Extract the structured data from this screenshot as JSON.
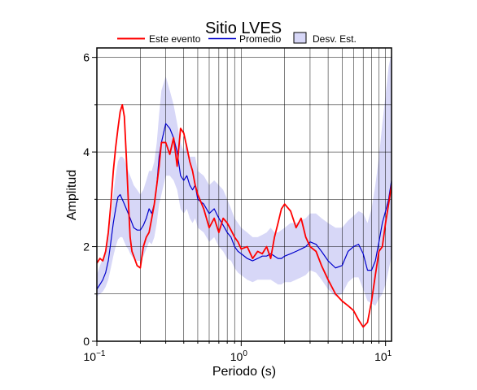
{
  "chart_data": {
    "type": "line",
    "title": "Sitio LVES",
    "xlabel": "Periodo (s)",
    "ylabel": "Amplitud",
    "x_scale": "log",
    "xlim": [
      0.1,
      11
    ],
    "ylim": [
      0,
      6.2
    ],
    "x_tick_labels": [
      {
        "value": 0.1,
        "base": "10",
        "exp": "−1"
      },
      {
        "value": 1,
        "base": "10",
        "exp": "0"
      },
      {
        "value": 10,
        "base": "10",
        "exp": "1"
      }
    ],
    "y_ticks": [
      0,
      2,
      4,
      6
    ],
    "grid": true,
    "legend_position": "top-center",
    "legend": {
      "event": "Este evento",
      "mean": "Promedio",
      "std": "Desv. Est."
    },
    "colors": {
      "event": "#ff0000",
      "mean": "#0000cc",
      "std_fill": "#d7d7f7",
      "grid": "#000000"
    },
    "series": [
      {
        "name": "Este evento",
        "x": [
          0.1,
          0.105,
          0.11,
          0.115,
          0.12,
          0.125,
          0.13,
          0.135,
          0.14,
          0.145,
          0.15,
          0.155,
          0.16,
          0.165,
          0.17,
          0.175,
          0.18,
          0.19,
          0.2,
          0.21,
          0.22,
          0.23,
          0.24,
          0.25,
          0.26,
          0.27,
          0.28,
          0.3,
          0.32,
          0.34,
          0.36,
          0.38,
          0.4,
          0.42,
          0.44,
          0.46,
          0.48,
          0.5,
          0.55,
          0.6,
          0.65,
          0.7,
          0.75,
          0.8,
          0.85,
          0.9,
          0.95,
          1.0,
          1.1,
          1.2,
          1.3,
          1.4,
          1.5,
          1.6,
          1.7,
          1.8,
          1.9,
          2.0,
          2.2,
          2.4,
          2.6,
          2.8,
          3.0,
          3.3,
          3.6,
          4.0,
          4.5,
          5.0,
          5.5,
          6.0,
          6.5,
          7.0,
          7.5,
          8.0,
          8.5,
          9.0,
          9.5,
          10.0,
          10.5,
          11.0
        ],
        "values": [
          1.65,
          1.75,
          1.7,
          1.9,
          2.3,
          2.9,
          3.6,
          4.1,
          4.5,
          4.85,
          5.0,
          4.75,
          3.9,
          3.0,
          2.2,
          1.9,
          1.8,
          1.6,
          1.55,
          2.0,
          2.2,
          2.3,
          2.6,
          2.9,
          3.3,
          3.7,
          4.2,
          4.2,
          3.95,
          4.3,
          3.7,
          4.5,
          4.4,
          4.1,
          3.8,
          3.6,
          3.3,
          3.1,
          2.8,
          2.4,
          2.6,
          2.3,
          2.6,
          2.5,
          2.35,
          2.2,
          2.1,
          1.95,
          2.0,
          1.75,
          1.9,
          1.85,
          2.0,
          1.75,
          2.2,
          2.5,
          2.8,
          2.9,
          2.75,
          2.4,
          2.6,
          2.2,
          2.0,
          1.9,
          1.6,
          1.3,
          1.0,
          0.85,
          0.75,
          0.65,
          0.45,
          0.3,
          0.4,
          0.85,
          1.4,
          1.9,
          2.0,
          2.5,
          2.9,
          3.3
        ]
      },
      {
        "name": "Promedio",
        "x": [
          0.1,
          0.105,
          0.11,
          0.115,
          0.12,
          0.125,
          0.13,
          0.135,
          0.14,
          0.145,
          0.15,
          0.155,
          0.16,
          0.165,
          0.17,
          0.175,
          0.18,
          0.19,
          0.2,
          0.21,
          0.22,
          0.23,
          0.24,
          0.25,
          0.26,
          0.27,
          0.28,
          0.3,
          0.32,
          0.34,
          0.36,
          0.38,
          0.4,
          0.42,
          0.44,
          0.46,
          0.48,
          0.5,
          0.55,
          0.6,
          0.65,
          0.7,
          0.75,
          0.8,
          0.85,
          0.9,
          0.95,
          1.0,
          1.1,
          1.2,
          1.3,
          1.4,
          1.5,
          1.6,
          1.7,
          1.8,
          1.9,
          2.0,
          2.2,
          2.4,
          2.6,
          2.8,
          3.0,
          3.3,
          3.6,
          4.0,
          4.5,
          5.0,
          5.5,
          6.0,
          6.5,
          7.0,
          7.5,
          8.0,
          8.5,
          9.0,
          9.5,
          10.0,
          10.5,
          11.0
        ],
        "values": [
          1.1,
          1.2,
          1.3,
          1.45,
          1.7,
          2.1,
          2.5,
          2.8,
          3.05,
          3.1,
          3.0,
          2.9,
          2.8,
          2.7,
          2.6,
          2.5,
          2.4,
          2.35,
          2.35,
          2.45,
          2.6,
          2.8,
          2.7,
          2.9,
          3.3,
          3.9,
          4.2,
          4.6,
          4.5,
          4.3,
          4.0,
          3.5,
          3.4,
          3.5,
          3.3,
          3.2,
          3.3,
          3.0,
          2.9,
          2.7,
          2.8,
          2.6,
          2.45,
          2.3,
          2.2,
          2.0,
          1.9,
          1.85,
          1.75,
          1.7,
          1.75,
          1.8,
          1.8,
          1.85,
          1.8,
          1.75,
          1.75,
          1.8,
          1.85,
          1.9,
          1.95,
          2.0,
          2.1,
          2.05,
          1.9,
          1.7,
          1.55,
          1.6,
          1.9,
          2.0,
          2.05,
          1.85,
          1.5,
          1.5,
          1.7,
          2.1,
          2.5,
          2.75,
          3.0,
          3.4
        ]
      },
      {
        "name": "Desv. Est.",
        "x": [
          0.1,
          0.105,
          0.11,
          0.115,
          0.12,
          0.125,
          0.13,
          0.135,
          0.14,
          0.145,
          0.15,
          0.155,
          0.16,
          0.165,
          0.17,
          0.175,
          0.18,
          0.19,
          0.2,
          0.21,
          0.22,
          0.23,
          0.24,
          0.25,
          0.26,
          0.27,
          0.28,
          0.3,
          0.32,
          0.34,
          0.36,
          0.38,
          0.4,
          0.42,
          0.44,
          0.46,
          0.48,
          0.5,
          0.55,
          0.6,
          0.65,
          0.7,
          0.75,
          0.8,
          0.85,
          0.9,
          0.95,
          1.0,
          1.1,
          1.2,
          1.3,
          1.4,
          1.5,
          1.6,
          1.7,
          1.8,
          1.9,
          2.0,
          2.2,
          2.4,
          2.6,
          2.8,
          3.0,
          3.3,
          3.6,
          4.0,
          4.5,
          5.0,
          5.5,
          6.0,
          6.5,
          7.0,
          7.5,
          8.0,
          8.5,
          9.0,
          9.5,
          10.0,
          10.5,
          11.0
        ],
        "upper": [
          1.4,
          1.6,
          1.75,
          1.9,
          2.2,
          2.6,
          3.1,
          3.5,
          3.8,
          3.9,
          3.9,
          3.85,
          3.7,
          3.6,
          3.5,
          3.4,
          3.3,
          3.2,
          3.1,
          3.2,
          3.4,
          3.6,
          3.6,
          3.8,
          4.2,
          4.8,
          5.3,
          5.6,
          5.3,
          5.0,
          4.6,
          4.2,
          4.0,
          4.2,
          3.9,
          3.9,
          3.9,
          3.6,
          3.5,
          3.3,
          3.4,
          3.3,
          3.2,
          3.0,
          2.8,
          2.6,
          2.5,
          2.4,
          2.3,
          2.2,
          2.2,
          2.25,
          2.3,
          2.4,
          2.3,
          2.3,
          2.35,
          2.4,
          2.5,
          2.5,
          2.55,
          2.6,
          2.7,
          2.7,
          2.6,
          2.5,
          2.4,
          2.4,
          2.55,
          2.65,
          2.75,
          2.7,
          2.5,
          2.8,
          3.3,
          3.9,
          4.6,
          5.2,
          5.8,
          6.1
        ],
        "lower": [
          0.95,
          1.0,
          1.05,
          1.15,
          1.3,
          1.55,
          1.8,
          2.0,
          2.15,
          2.2,
          2.2,
          2.1,
          2.0,
          1.95,
          1.85,
          1.8,
          1.75,
          1.7,
          1.7,
          1.8,
          1.95,
          2.1,
          2.05,
          2.2,
          2.5,
          2.9,
          3.1,
          3.5,
          3.5,
          3.4,
          3.2,
          2.8,
          2.7,
          2.8,
          2.6,
          2.5,
          2.6,
          2.4,
          2.3,
          2.1,
          2.2,
          2.0,
          1.9,
          1.75,
          1.7,
          1.55,
          1.45,
          1.4,
          1.3,
          1.25,
          1.3,
          1.3,
          1.3,
          1.3,
          1.25,
          1.2,
          1.2,
          1.25,
          1.25,
          1.3,
          1.35,
          1.4,
          1.5,
          1.45,
          1.3,
          1.1,
          0.95,
          1.0,
          1.25,
          1.35,
          1.35,
          1.1,
          0.85,
          0.8,
          0.75,
          0.9,
          1.0,
          1.2,
          1.5,
          1.8
        ]
      }
    ]
  }
}
